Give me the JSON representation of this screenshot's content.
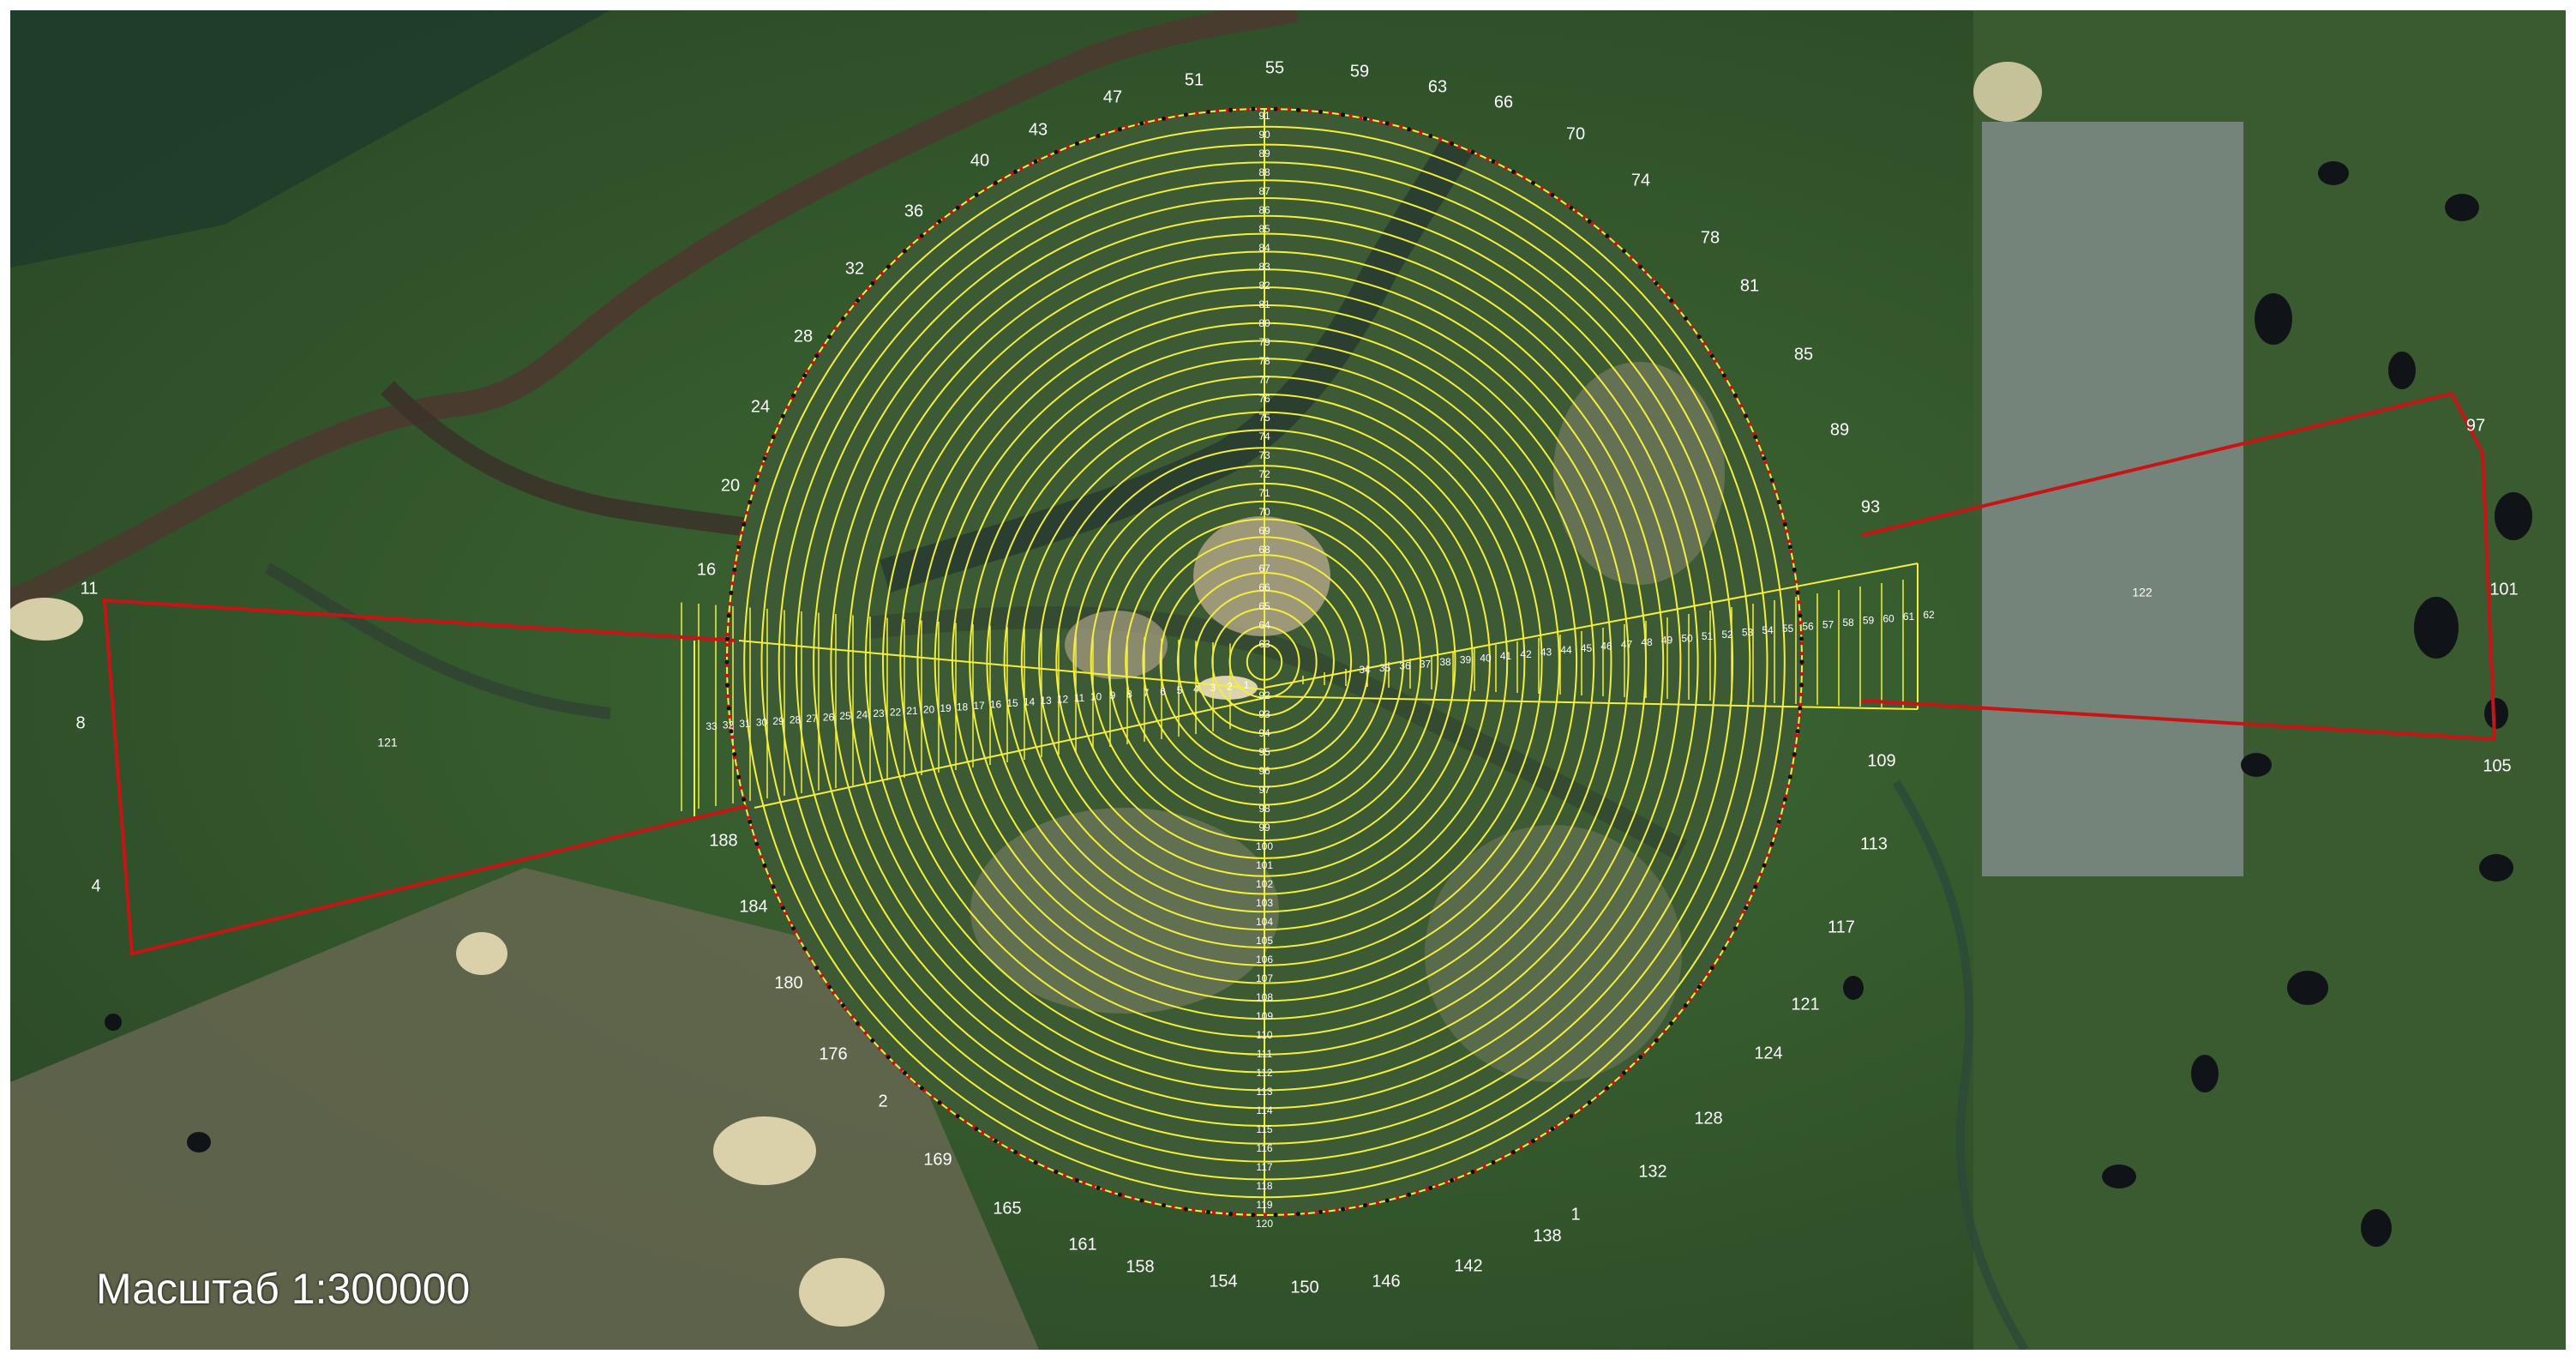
{
  "map": {
    "type": "satellite-survey-zone-map",
    "scale_label": "Масштаб 1:300000",
    "colors": {
      "circle_outline": "#c01818",
      "survey_lines": "#f4ee3c",
      "zone_labels": "#ffffff",
      "extension_polygons": "#c81414",
      "vertex_markers": "#111111"
    },
    "boundary_vertex_labels": [
      "1",
      "2",
      "4",
      "8",
      "11",
      "16",
      "20",
      "24",
      "28",
      "32",
      "36",
      "40",
      "43",
      "47",
      "51",
      "55",
      "59",
      "63",
      "66",
      "70",
      "74",
      "78",
      "81",
      "85",
      "89",
      "93",
      "97",
      "101",
      "105",
      "109",
      "113",
      "117",
      "121",
      "124",
      "128",
      "132",
      "138",
      "142",
      "146",
      "150",
      "154",
      "158",
      "161",
      "165",
      "169",
      "176",
      "180",
      "184",
      "188"
    ],
    "zone_numbers": {
      "west_arm": [
        "1",
        "2",
        "3",
        "4",
        "5",
        "6",
        "7",
        "8",
        "9",
        "10",
        "11",
        "12",
        "13",
        "14",
        "15",
        "16",
        "17",
        "18",
        "19",
        "20",
        "21",
        "22",
        "23",
        "24",
        "25",
        "26",
        "27",
        "28",
        "29",
        "30",
        "31",
        "32",
        "33"
      ],
      "east_arm": [
        "34",
        "35",
        "36",
        "37",
        "38",
        "39",
        "40",
        "41",
        "42",
        "43",
        "44",
        "45",
        "46",
        "47",
        "48",
        "49",
        "50",
        "51",
        "52",
        "53",
        "54",
        "55",
        "56",
        "57",
        "58",
        "59",
        "60",
        "61",
        "62"
      ],
      "north_arm": [
        "63",
        "64",
        "65",
        "66",
        "67",
        "68",
        "69",
        "70",
        "71",
        "72",
        "73",
        "74",
        "75",
        "76",
        "77",
        "78",
        "79",
        "80",
        "81",
        "82",
        "83",
        "84",
        "85",
        "86",
        "87",
        "88",
        "89",
        "90",
        "91"
      ],
      "south_arm": [
        "92",
        "93",
        "94",
        "95",
        "96",
        "97",
        "98",
        "99",
        "100",
        "101",
        "102",
        "103",
        "104",
        "105",
        "106",
        "107",
        "108",
        "109",
        "110",
        "111",
        "112",
        "113",
        "114",
        "115",
        "116",
        "117",
        "118",
        "119",
        "120"
      ],
      "western_polygon": "121",
      "eastern_polygon": "122"
    }
  }
}
